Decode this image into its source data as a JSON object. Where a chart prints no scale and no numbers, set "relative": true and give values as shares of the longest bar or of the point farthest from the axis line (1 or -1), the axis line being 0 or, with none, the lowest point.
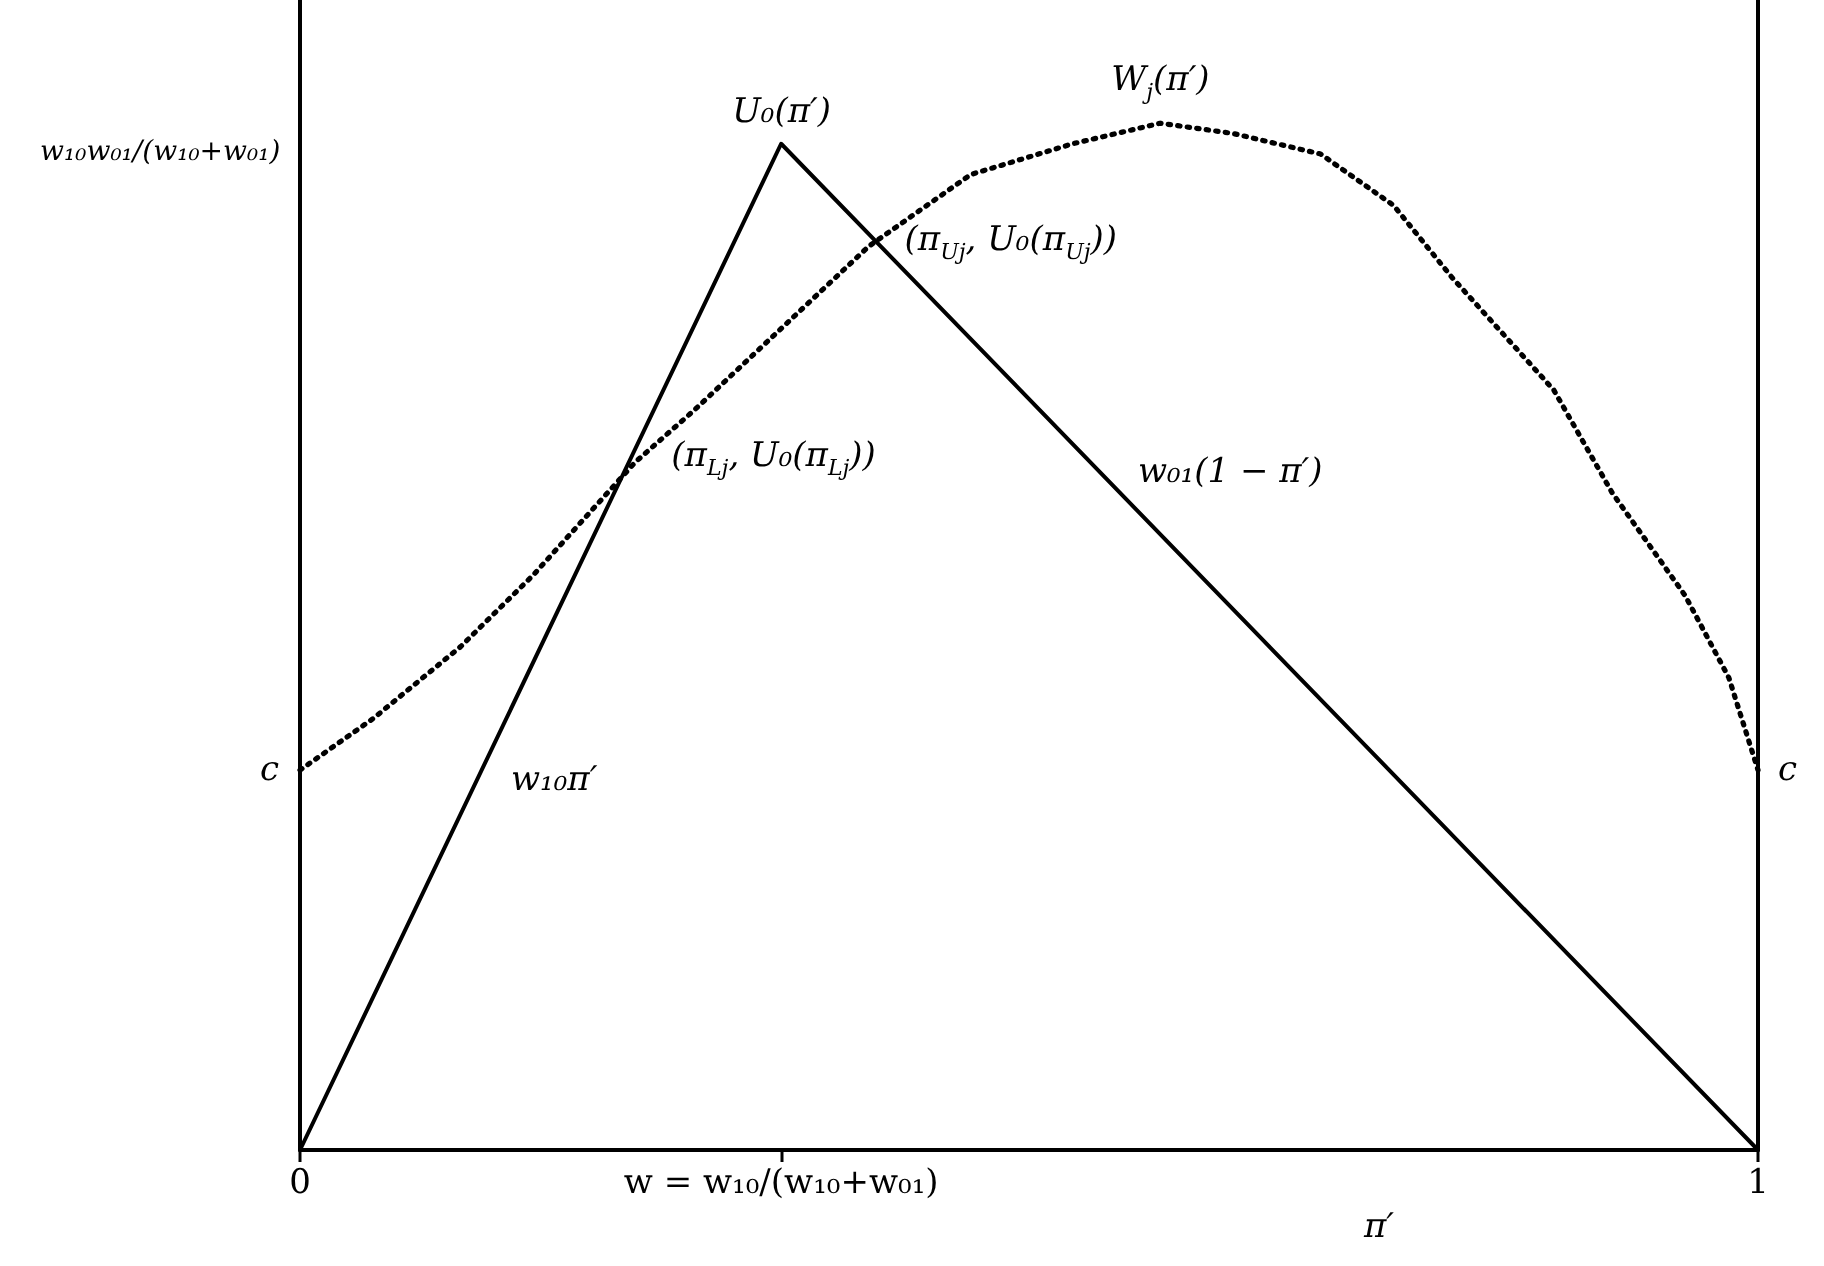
{
  "chart_data": {
    "type": "line",
    "relative": true,
    "marker": "none",
    "xlim": [
      0,
      1
    ],
    "xticks": [
      0,
      {
        "value": 0.33,
        "label": "w = w₁₀/(w₁₀+w₀₁)"
      },
      1
    ],
    "xlabel": "π′",
    "series": [
      {
        "color": "#000000",
        "line_style": "solid",
        "x": [
          0,
          0.33,
          1
        ],
        "values": [
          0,
          0.98,
          0
        ]
      },
      {
        "color": "#000000",
        "line_style": "dotted",
        "x": [
          0,
          0.05,
          0.11,
          0.16,
          0.23,
          0.27,
          0.33,
          0.39,
          0.44,
          0.46,
          0.53,
          0.59,
          0.64,
          0.7,
          0.75,
          0.79,
          0.86,
          0.9,
          0.95,
          0.98,
          1
        ],
        "values": [
          0.37,
          0.42,
          0.49,
          0.56,
          0.67,
          0.72,
          0.8,
          0.88,
          0.93,
          0.95,
          0.98,
          1,
          0.99,
          0.97,
          0.92,
          0.85,
          0.74,
          0.64,
          0.54,
          0.46,
          0.37
        ]
      }
    ],
    "annotations": [
      {
        "text": "U₀(π′)",
        "x": 0.33,
        "y": 0.98
      },
      {
        "text": "W$_{j}$(π′)",
        "x": 0.59,
        "y": 1
      },
      {
        "text": "(π$_{Uj}$, U₀(π$_{Uj}$))",
        "x": 0.39,
        "y": 0.88
      },
      {
        "text": "(π$_{Lj}$, U₀(π$_{Lj}$))",
        "x": 0.23,
        "y": 0.67
      },
      {
        "text": "w₀₁(1 − π′)",
        "x": 0.55,
        "y": 0.66
      },
      {
        "text": "w₁₀π′",
        "x": 0.12,
        "y": 0.36
      },
      {
        "text": "c",
        "x": 0,
        "y": 0.37
      },
      {
        "text": "c",
        "x": 1,
        "y": 0.37
      },
      "w₁₀w₀₁/(w₁₀+w₀₁)"
    ]
  }
}
